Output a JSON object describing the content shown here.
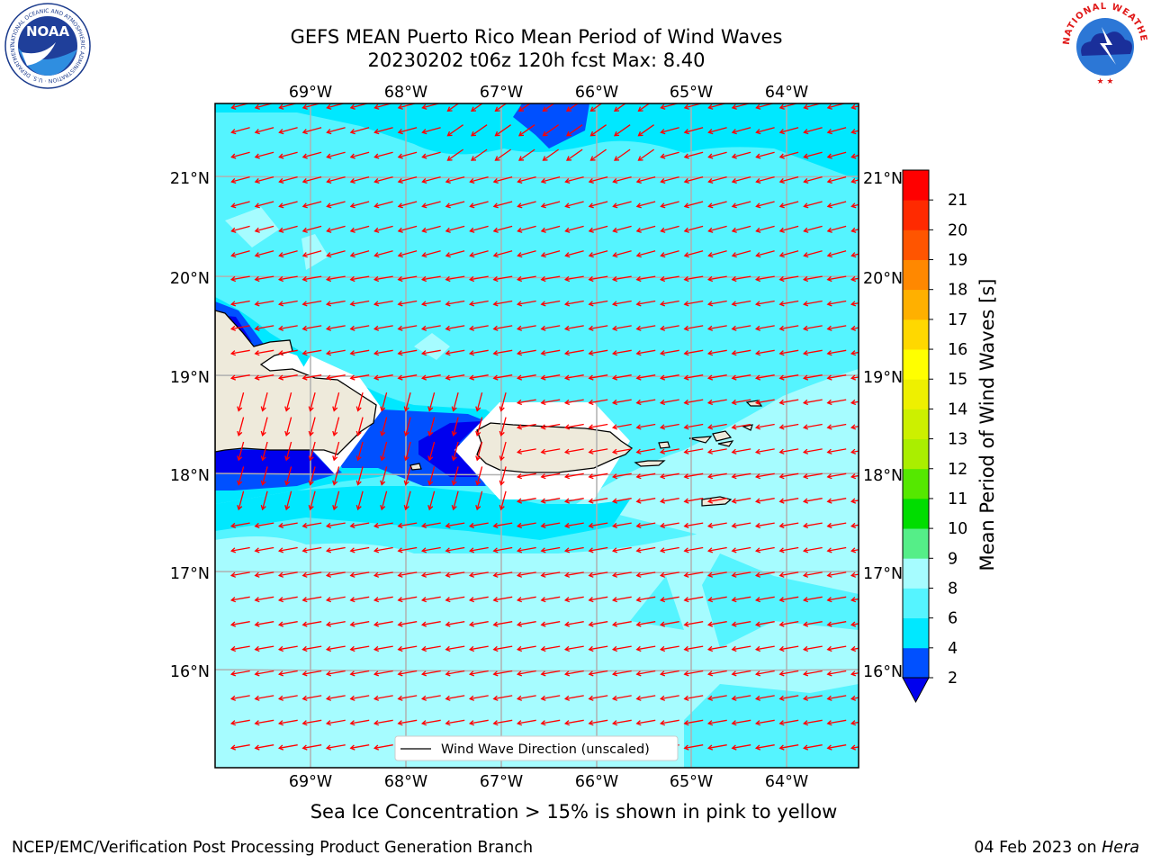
{
  "header": {
    "title_line1": "GEFS MEAN Puerto Rico Mean Period of Wind Waves",
    "title_line2": "20230202 t06z 120h fcst   Max: 8.40"
  },
  "map": {
    "lon_labels": [
      "69°W",
      "68°W",
      "67°W",
      "66°W",
      "65°W",
      "64°W"
    ],
    "lat_labels": [
      "21°N",
      "20°N",
      "19°N",
      "18°N",
      "17°N",
      "16°N"
    ],
    "legend_label": "Wind Wave Direction (unscaled)",
    "arrow_color": "#ff0000",
    "arrow_direction": "westward (from east)",
    "land_color": "#eeeadb"
  },
  "colorbar": {
    "label": "Mean Period of Wind Waves [s]",
    "ticks": [
      "2",
      "4",
      "6",
      "8",
      "9",
      "10",
      "11",
      "12",
      "13",
      "14",
      "15",
      "16",
      "17",
      "18",
      "19",
      "20",
      "21"
    ],
    "colors": [
      "#0050ff",
      "#00e8ff",
      "#55f4ff",
      "#a6fcff",
      "#55ee88",
      "#00dd00",
      "#55e800",
      "#aaee00",
      "#ccf000",
      "#eef000",
      "#ffff00",
      "#ffd800",
      "#ffb000",
      "#ff8800",
      "#ff5500",
      "#ff2a00",
      "#ff0000"
    ],
    "under_color": "#0000ee"
  },
  "footer": {
    "note": "Sea Ice Concentration > 15% is shown in pink to yellow",
    "credit": "NCEP/EMC/Verification Post Processing Product Generation Branch",
    "date": "04 Feb 2023 on ",
    "host": "Hera"
  },
  "logos": {
    "noaa_text": "NOAA",
    "noaa_ring": "NATIONAL OCEANIC AND ATMOSPHERIC ADMINISTRATION · U.S. DEPARTMENT OF COMMERCE",
    "nws_ring": "NATIONAL WEATHER SERVICE"
  }
}
